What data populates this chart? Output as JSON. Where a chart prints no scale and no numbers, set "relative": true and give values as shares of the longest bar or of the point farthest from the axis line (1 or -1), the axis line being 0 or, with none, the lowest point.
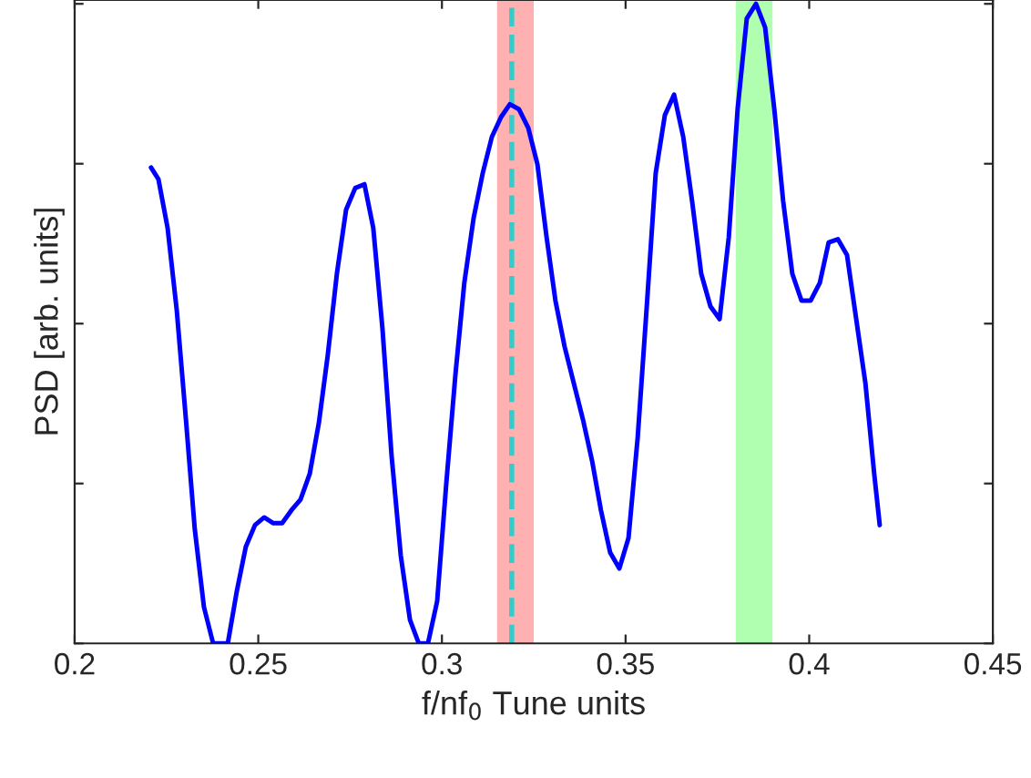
{
  "chart_data": {
    "type": "line",
    "xlabel": "f/nf$_{0}$ Tune units",
    "ylabel": "PSD [arb. units]",
    "relative": true,
    "xlim": [
      0.2,
      0.45
    ],
    "xticks": [
      0.2,
      0.25,
      0.3,
      0.35,
      0.4,
      0.45
    ],
    "grid": false,
    "line_style": "solid",
    "marker": "none",
    "series": [
      {
        "color": "#0000ff",
        "x": [
          0.2208,
          0.2228,
          0.2253,
          0.2278,
          0.2303,
          0.2327,
          0.2352,
          0.2377,
          0.2417,
          0.2441,
          0.2466,
          0.2491,
          0.2516,
          0.2541,
          0.2565,
          0.259,
          0.2615,
          0.264,
          0.2665,
          0.2689,
          0.2714,
          0.2739,
          0.2764,
          0.2789,
          0.2813,
          0.2838,
          0.2863,
          0.2888,
          0.2913,
          0.2937,
          0.2962,
          0.2987,
          0.3012,
          0.3037,
          0.3061,
          0.3086,
          0.3111,
          0.3136,
          0.3161,
          0.3185,
          0.321,
          0.3235,
          0.326,
          0.3285,
          0.3309,
          0.3334,
          0.3359,
          0.3384,
          0.3409,
          0.3433,
          0.3458,
          0.3483,
          0.3508,
          0.3533,
          0.3557,
          0.3582,
          0.3607,
          0.3632,
          0.3657,
          0.3681,
          0.3706,
          0.3731,
          0.3756,
          0.3781,
          0.3805,
          0.383,
          0.3855,
          0.388,
          0.3905,
          0.3929,
          0.3954,
          0.3979,
          0.4004,
          0.4029,
          0.4053,
          0.4078,
          0.4103,
          0.4128,
          0.4153,
          0.4177,
          0.4192
        ],
        "values": [
          0.744,
          0.726,
          0.65,
          0.521,
          0.35,
          0.179,
          0.057,
          0,
          0,
          0.08,
          0.151,
          0.185,
          0.197,
          0.188,
          0.188,
          0.208,
          0.225,
          0.265,
          0.345,
          0.45,
          0.578,
          0.678,
          0.712,
          0.718,
          0.65,
          0.493,
          0.293,
          0.137,
          0.037,
          0,
          0,
          0.066,
          0.251,
          0.422,
          0.564,
          0.664,
          0.735,
          0.792,
          0.823,
          0.843,
          0.835,
          0.806,
          0.749,
          0.635,
          0.536,
          0.464,
          0.407,
          0.35,
          0.285,
          0.208,
          0.142,
          0.117,
          0.165,
          0.322,
          0.521,
          0.735,
          0.826,
          0.858,
          0.792,
          0.692,
          0.578,
          0.527,
          0.507,
          0.635,
          0.835,
          0.977,
          1,
          0.963,
          0.835,
          0.692,
          0.578,
          0.536,
          0.536,
          0.564,
          0.627,
          0.632,
          0.607,
          0.507,
          0.407,
          0.265,
          0.185
        ]
      }
    ],
    "bands": [
      {
        "axis": "x",
        "from": 0.315,
        "to": 0.325,
        "color": "#ffb0b0"
      },
      {
        "axis": "x",
        "from": 0.38,
        "to": 0.39,
        "color": "#b0ffb0"
      }
    ],
    "ref_lines": [
      {
        "axis": "x",
        "value": 0.319,
        "color": "#33cccc",
        "line_style": "dashed"
      }
    ]
  }
}
